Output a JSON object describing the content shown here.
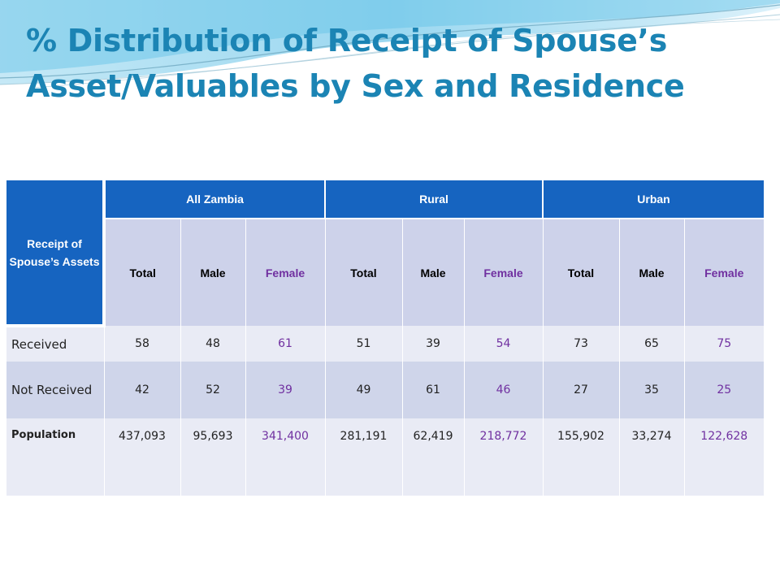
{
  "slide": {
    "title_line1": "% Distribution of Receipt of Spouse’s",
    "title_line2": "Asset/Valuables by Sex and Residence"
  },
  "table": {
    "corner_header": "Receipt of Spouse’s Assets",
    "groups": [
      "All Zambia",
      "Rural",
      "Urban"
    ],
    "subheaders": [
      "Total",
      "Male",
      "Female",
      "Total",
      "Male",
      "Female",
      "Total",
      "Male",
      "Female"
    ],
    "rows": [
      {
        "label": "Received",
        "values": [
          "58",
          "48",
          "61",
          "51",
          "39",
          "54",
          "73",
          "65",
          "75"
        ]
      },
      {
        "label": "Not Received",
        "values": [
          "42",
          "52",
          "39",
          "49",
          "61",
          "46",
          "27",
          "35",
          "25"
        ]
      },
      {
        "label": "Population",
        "values": [
          "437,093",
          "95,693",
          "341,400",
          "281,191",
          "62,419",
          "218,772",
          "155,902",
          "33,274",
          "122,628"
        ]
      }
    ]
  },
  "colors": {
    "title": "#1b84b4",
    "header_blue": "#1664c0",
    "subheader": "#cdd2ea",
    "female_text": "#7030a0"
  }
}
